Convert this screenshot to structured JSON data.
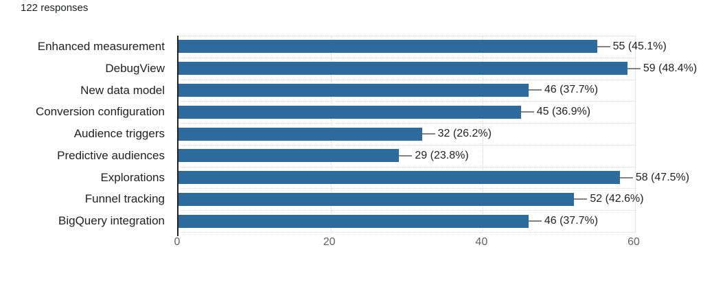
{
  "header": {
    "responses_label": "122 responses"
  },
  "chart_data": {
    "type": "bar",
    "orientation": "horizontal",
    "title": "",
    "xlabel": "",
    "ylabel": "",
    "categories": [
      "Enhanced measurement",
      "DebugView",
      "New data model",
      "Conversion configuration",
      "Audience triggers",
      "Predictive audiences",
      "Explorations",
      "Funnel tracking",
      "BigQuery integration"
    ],
    "values": [
      55,
      59,
      46,
      45,
      32,
      29,
      58,
      52,
      46
    ],
    "value_labels": [
      "55 (45.1%)",
      "59 (48.4%)",
      "46 (37.7%)",
      "45 (36.9%)",
      "32 (26.2%)",
      "29 (23.8%)",
      "58 (47.5%)",
      "52 (42.6%)",
      "46 (37.7%)"
    ],
    "x_tick_labels": [
      "0",
      "20",
      "40",
      "60"
    ],
    "x_tick_values": [
      0,
      20,
      40,
      60
    ],
    "xlim": [
      0,
      60
    ],
    "grid": "dotted vertical gridlines at ticks and dotted horizontal row separators",
    "legend": "none"
  },
  "colors": {
    "bar": "#2d6b9e",
    "background": "#ffffff",
    "grid_line": "#d9dadc",
    "axis_line": "#212121",
    "connector_line": "#828282",
    "category_label_text": "#212121",
    "value_label_text": "#212121",
    "tick_label_text": "#616161",
    "header_text": "#202124"
  }
}
